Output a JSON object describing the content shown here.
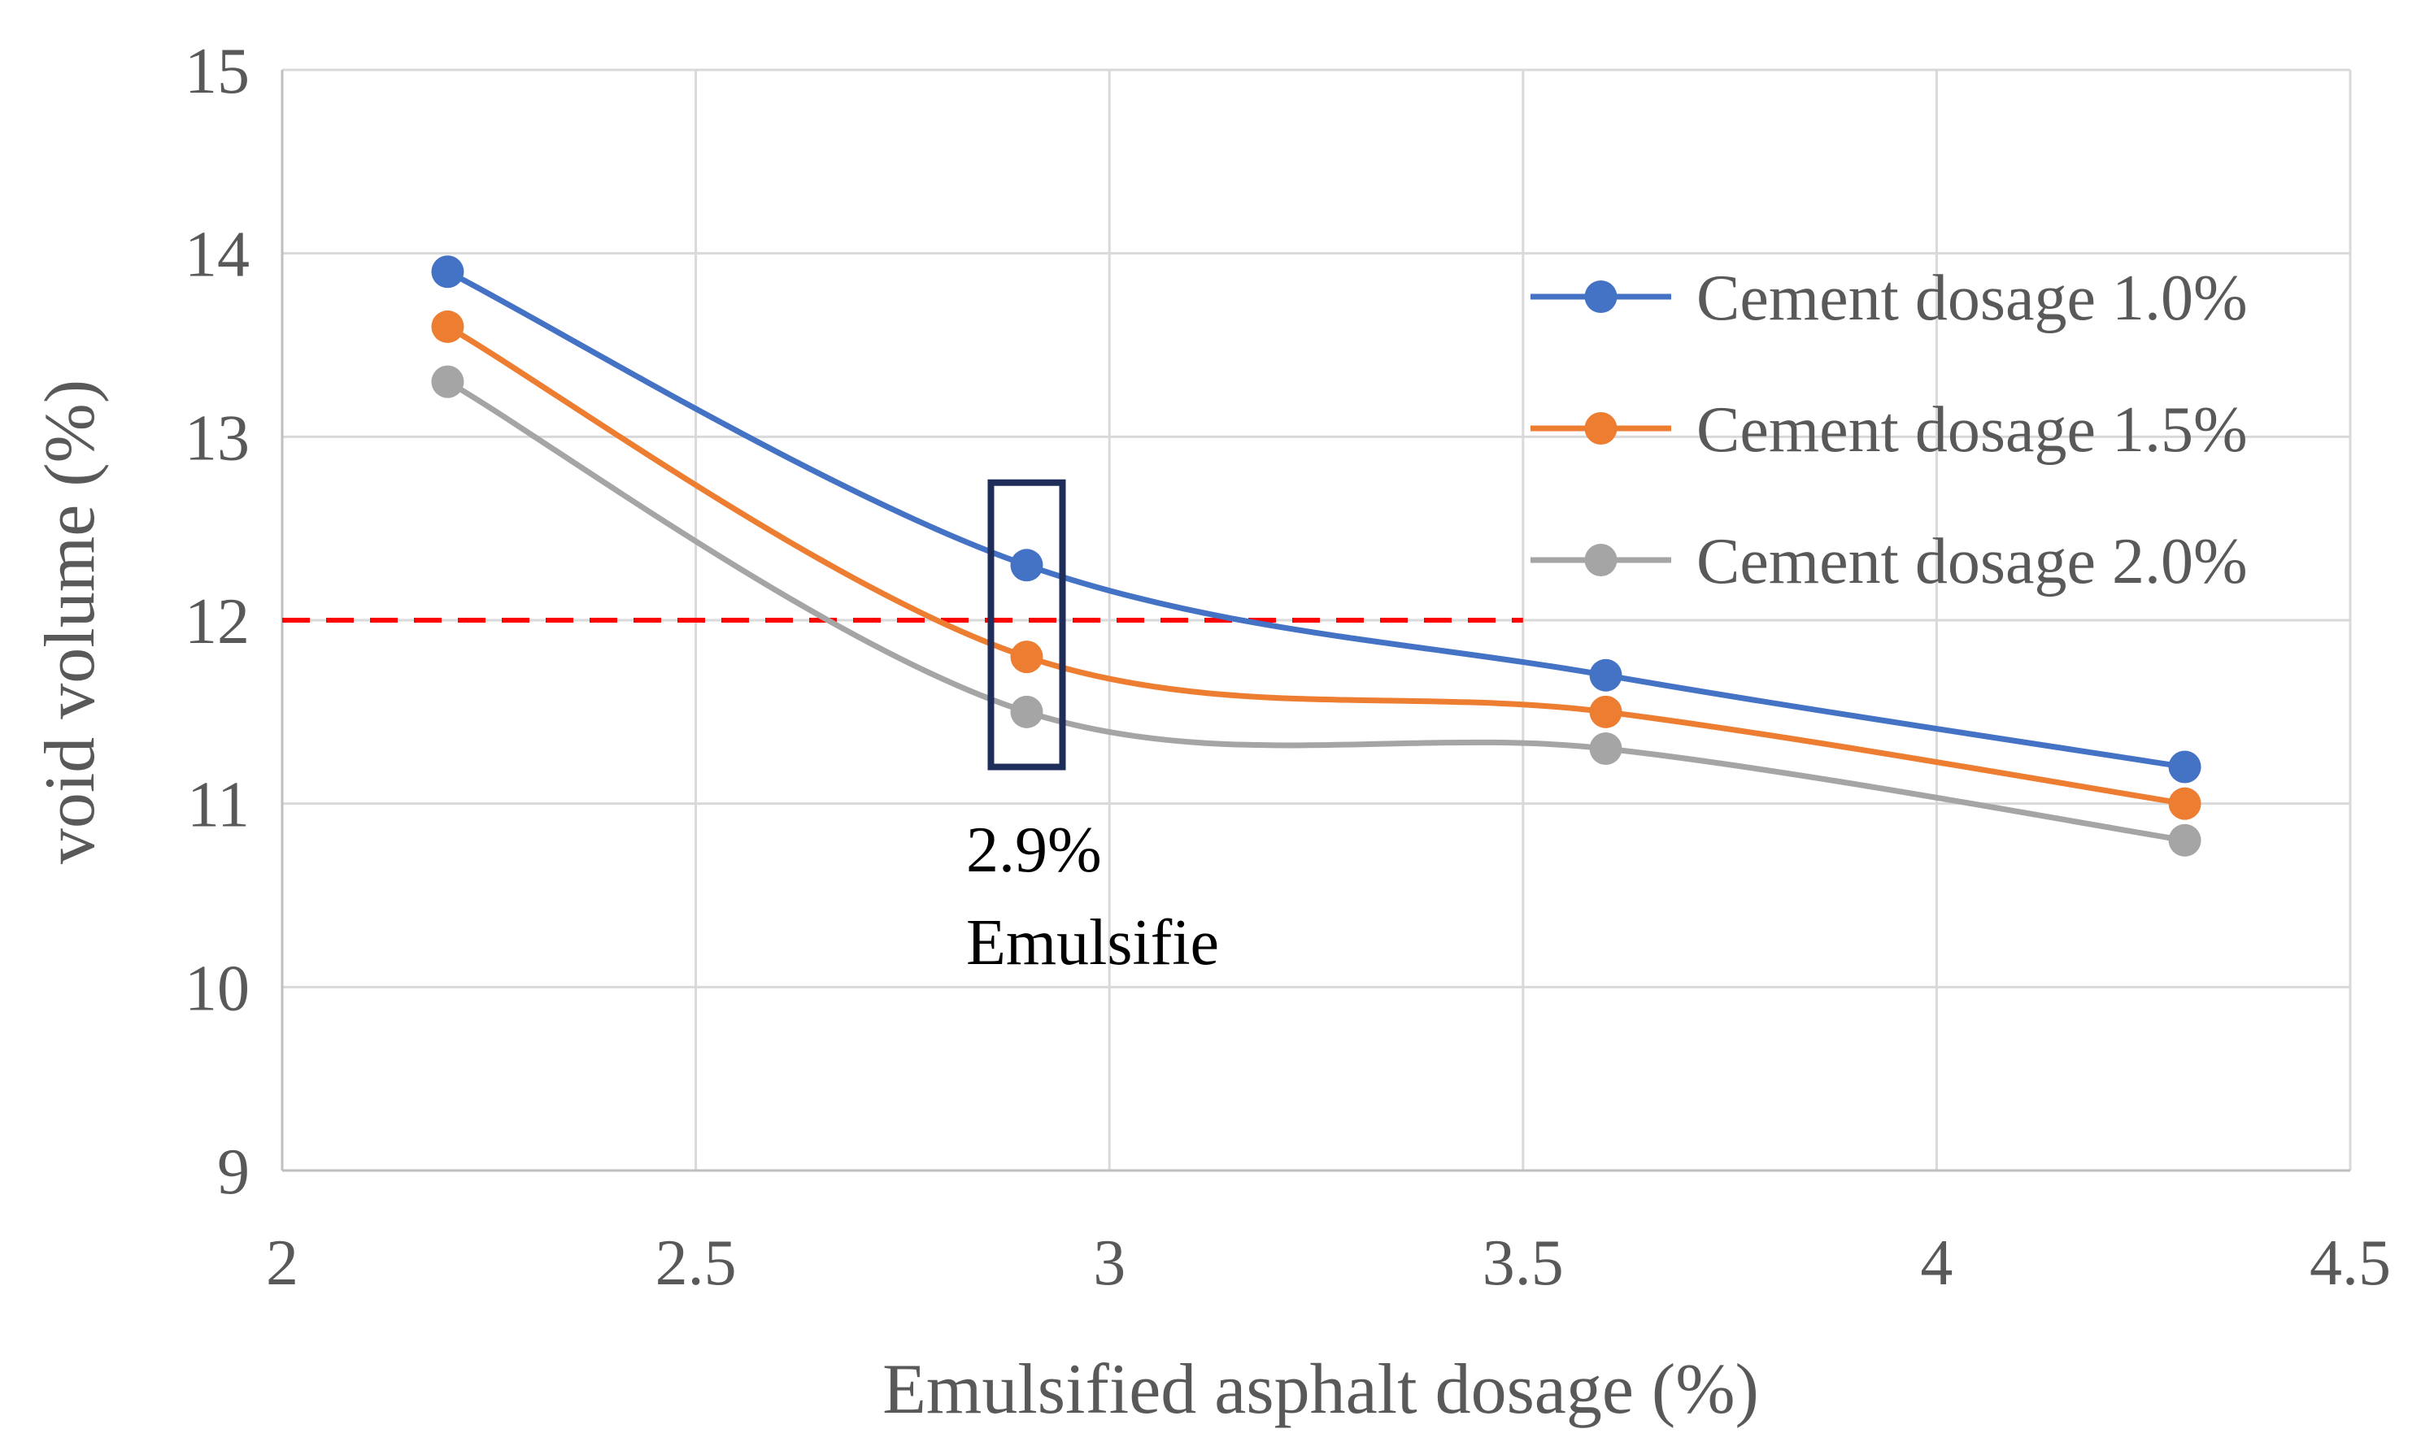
{
  "chart_data": {
    "type": "line",
    "title": "",
    "xlabel": "Emulsified asphalt dosage (%)",
    "ylabel": "void volume (%)",
    "xlim": [
      2,
      4.5
    ],
    "ylim": [
      9,
      15
    ],
    "x_ticks": [
      "2",
      "2.5",
      "3",
      "3.5",
      "4",
      "4.5"
    ],
    "y_ticks": [
      "9",
      "10",
      "11",
      "12",
      "13",
      "14",
      "15"
    ],
    "grid": true,
    "smooth": true,
    "legend_position": "right",
    "x": [
      2.2,
      2.9,
      3.6,
      4.3
    ],
    "series": [
      {
        "name": "Cement dosage 1.0%",
        "color": "#4472C4",
        "values": [
          13.9,
          12.3,
          11.7,
          11.2
        ]
      },
      {
        "name": "Cement dosage 1.5%",
        "color": "#ED7D31",
        "values": [
          13.6,
          11.8,
          11.5,
          11.0
        ]
      },
      {
        "name": "Cement dosage 2.0%",
        "color": "#A5A5A5",
        "values": [
          13.3,
          11.5,
          11.3,
          10.8
        ]
      }
    ],
    "reference_line": {
      "y": 12,
      "x_from": 2,
      "x_to": 3.5,
      "color": "#FF0000",
      "style": "dashed"
    },
    "highlight_box": {
      "x": 2.9,
      "y_from": 11.2,
      "y_to": 12.75,
      "color": "#1F2D5A"
    },
    "annotation": {
      "line1": "2.9%",
      "line2": "Emulsifie"
    }
  }
}
